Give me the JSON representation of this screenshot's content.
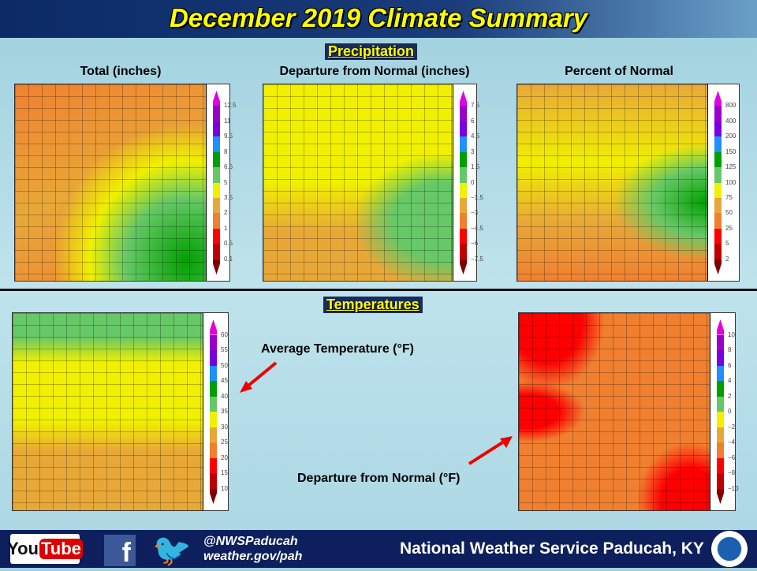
{
  "title": "December 2019 Climate Summary",
  "precip": {
    "section": "Precipitation",
    "maps": [
      {
        "label": "Total (inches)",
        "ticks": [
          "12.5",
          "11",
          "9.5",
          "8",
          "6.5",
          "5",
          "3.5",
          "2",
          "1",
          "0.5",
          "0.1"
        ]
      },
      {
        "label": "Departure  from Normal (inches)",
        "ticks": [
          "7.5",
          "6",
          "4.5",
          "3",
          "1.5",
          "0",
          "−1.5",
          "−3",
          "−4.5",
          "−6",
          "−7.5"
        ]
      },
      {
        "label": "Percent of Normal",
        "ticks": [
          "800",
          "400",
          "200",
          "150",
          "125",
          "100",
          "75",
          "50",
          "25",
          "5",
          "2"
        ]
      }
    ]
  },
  "temps": {
    "section": "Temperatures",
    "maps": [
      {
        "label": "Average Temperature (°F)",
        "ticks": [
          "60",
          "55",
          "50",
          "45",
          "40",
          "35",
          "30",
          "25",
          "20",
          "15",
          "10"
        ]
      },
      {
        "label": "Departure  from Normal (°F)",
        "ticks": [
          "10",
          "8",
          "6",
          "4",
          "2",
          "0",
          "−2",
          "−4",
          "−6",
          "−8",
          "−10"
        ]
      }
    ]
  },
  "legend_colors": [
    "#e000e0",
    "#9a00c8",
    "#7800e0",
    "#1e90ff",
    "#00a000",
    "#66c866",
    "#f0f000",
    "#e8a838",
    "#f08030",
    "#ff0000",
    "#c00000",
    "#800000"
  ],
  "footer": {
    "youtube_you": "You",
    "youtube_tube": "Tube",
    "handle": "@NWSPaducah",
    "site": "weather.gov/pah",
    "office": "National Weather Service Paducah, KY"
  }
}
